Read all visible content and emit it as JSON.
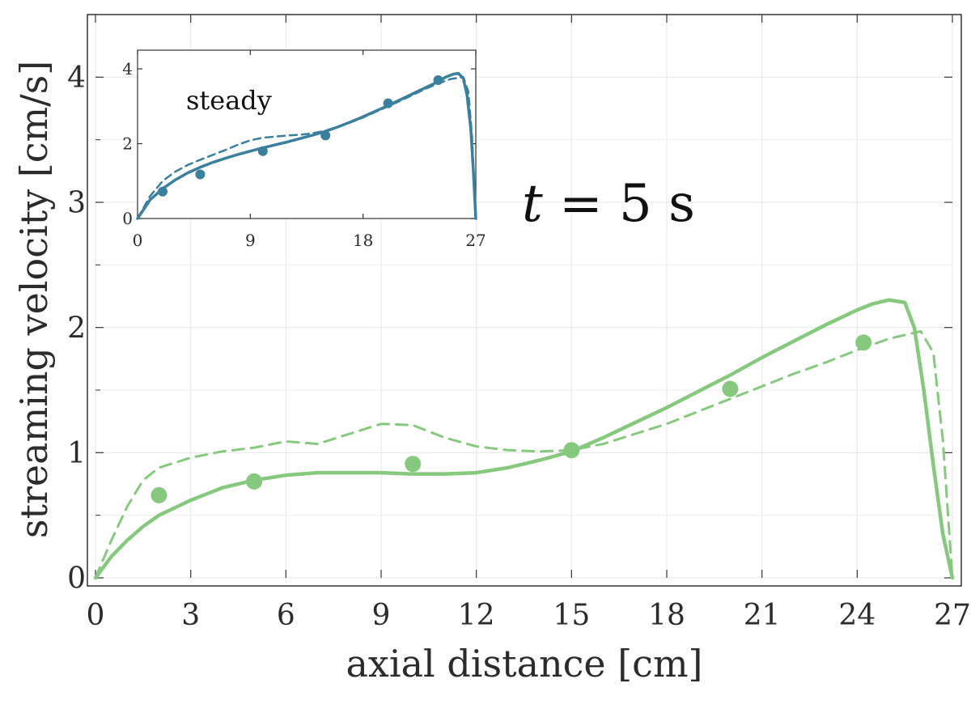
{
  "chart_data": [
    {
      "type": "line",
      "xlabel": "axial distance [cm]",
      "ylabel": "streaming velocity [cm/s]",
      "xlim": [
        0,
        27
      ],
      "ylim": [
        0,
        4.5
      ],
      "xticks": [
        "0",
        "3",
        "6",
        "9",
        "12",
        "15",
        "18",
        "21",
        "24",
        "27"
      ],
      "yticks": [
        "0",
        "1",
        "2",
        "3",
        "4"
      ],
      "grid": true,
      "color": "#86c97e",
      "annotation": {
        "italic": "t",
        "rest": " =  5 s"
      },
      "series": [
        {
          "style": "solid",
          "x": [
            0,
            0.5,
            1,
            1.5,
            2,
            3,
            4,
            5,
            6,
            7,
            8,
            9,
            10,
            11,
            12,
            13,
            14,
            15,
            16,
            17,
            18,
            19,
            20,
            21,
            22,
            23,
            24,
            24.5,
            25,
            25.5,
            25.8,
            26.1,
            26.4,
            26.7,
            27
          ],
          "y": [
            0,
            0.17,
            0.3,
            0.41,
            0.5,
            0.62,
            0.72,
            0.78,
            0.82,
            0.84,
            0.84,
            0.84,
            0.83,
            0.83,
            0.84,
            0.88,
            0.94,
            1.01,
            1.12,
            1.24,
            1.36,
            1.49,
            1.62,
            1.76,
            1.89,
            2.02,
            2.14,
            2.19,
            2.22,
            2.2,
            2.0,
            1.5,
            0.9,
            0.35,
            0
          ]
        },
        {
          "style": "dashed",
          "x": [
            0,
            0.5,
            1,
            1.5,
            2,
            3,
            4,
            5,
            6,
            7,
            8,
            9,
            10,
            11,
            12,
            13,
            14,
            15,
            16,
            17,
            18,
            19,
            20,
            21,
            22,
            23,
            24,
            25,
            26,
            26.4,
            26.7,
            27
          ],
          "y": [
            0,
            0.3,
            0.57,
            0.78,
            0.88,
            0.96,
            1.01,
            1.04,
            1.09,
            1.07,
            1.15,
            1.23,
            1.22,
            1.12,
            1.05,
            1.02,
            1.01,
            1.02,
            1.07,
            1.15,
            1.23,
            1.33,
            1.43,
            1.53,
            1.63,
            1.72,
            1.82,
            1.91,
            1.97,
            1.8,
            1.1,
            0
          ]
        },
        {
          "style": "markers",
          "x": [
            2,
            5,
            10,
            15,
            20,
            24.2
          ],
          "y": [
            0.66,
            0.77,
            0.91,
            1.02,
            1.51,
            1.88
          ]
        }
      ]
    },
    {
      "type": "line",
      "inset": true,
      "xlim": [
        0,
        27
      ],
      "ylim": [
        0,
        4.5
      ],
      "xticks": [
        "0",
        "9",
        "18",
        "27"
      ],
      "yticks": [
        "0",
        "2",
        "4"
      ],
      "color": "#3a7f9d",
      "annotation": "steady",
      "series": [
        {
          "style": "solid",
          "x": [
            0,
            1,
            2,
            3,
            4,
            5,
            6,
            7,
            8,
            9,
            10,
            11,
            12,
            13,
            14,
            15,
            16,
            17,
            18,
            19,
            20,
            21,
            22,
            23,
            24,
            24.6,
            25.2,
            25.6,
            26,
            26.3,
            26.6,
            26.8,
            27
          ],
          "y": [
            0,
            0.5,
            0.8,
            1.03,
            1.22,
            1.37,
            1.5,
            1.61,
            1.71,
            1.8,
            1.89,
            1.97,
            2.05,
            2.14,
            2.23,
            2.33,
            2.45,
            2.58,
            2.72,
            2.87,
            3.02,
            3.18,
            3.34,
            3.5,
            3.66,
            3.78,
            3.86,
            3.88,
            3.75,
            3.3,
            2.4,
            1.3,
            0
          ]
        },
        {
          "style": "dashed",
          "x": [
            0,
            1,
            2,
            3,
            4,
            5,
            6,
            7,
            8,
            9,
            10,
            11,
            12,
            13,
            14,
            15,
            16,
            17,
            18,
            19,
            20,
            21,
            22,
            23,
            24,
            25,
            26,
            26.4,
            26.7,
            27
          ],
          "y": [
            0,
            0.6,
            1.0,
            1.25,
            1.43,
            1.57,
            1.7,
            1.83,
            1.97,
            2.09,
            2.16,
            2.19,
            2.22,
            2.24,
            2.28,
            2.35,
            2.45,
            2.57,
            2.7,
            2.85,
            3.0,
            3.15,
            3.31,
            3.47,
            3.61,
            3.73,
            3.78,
            3.4,
            2.2,
            0
          ]
        },
        {
          "style": "markers",
          "x": [
            2,
            5,
            10,
            15,
            20,
            24
          ],
          "y": [
            0.72,
            1.18,
            1.8,
            2.22,
            3.08,
            3.7
          ]
        }
      ]
    }
  ]
}
